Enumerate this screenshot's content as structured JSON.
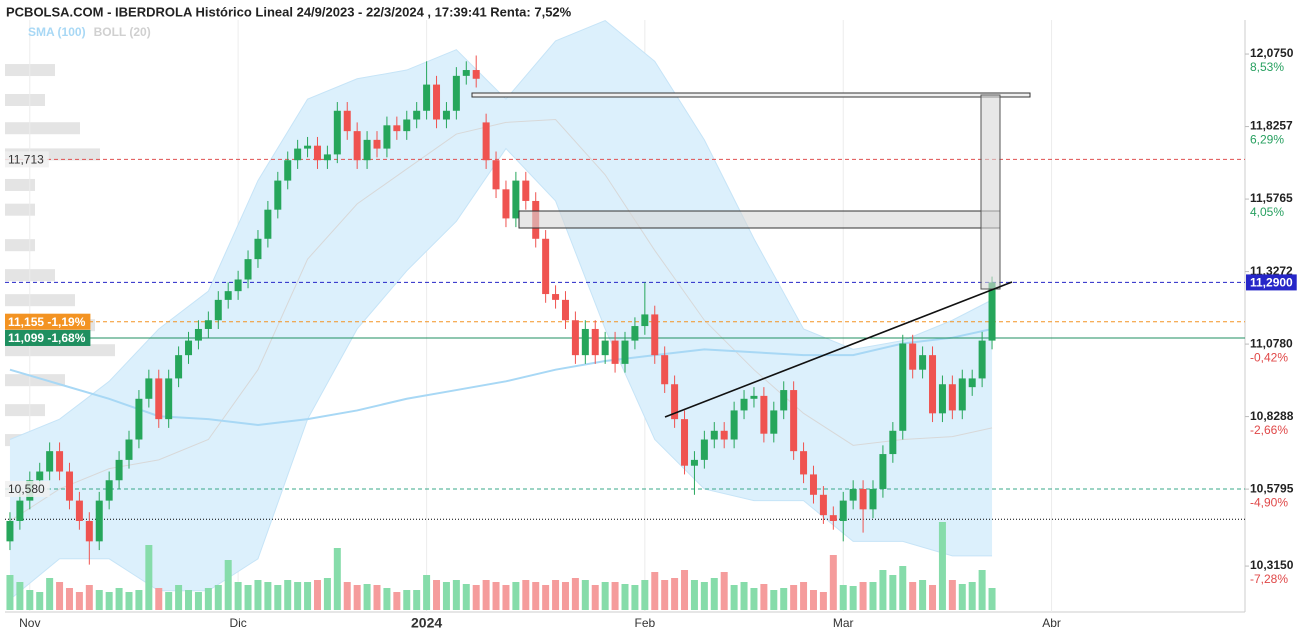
{
  "chart_data": {
    "type": "candlestick",
    "title": "PCBOLSA.COM - IBERDROLA Histórico Lineal 24/9/2023 - 22/3/2024 , 17:39:41 Renta: 7,52%",
    "legend": [
      {
        "label": "SMA (100)",
        "color": "#a8d8f5"
      },
      {
        "label": "BOLL (20)",
        "color": "#d0d0d0"
      }
    ],
    "xlim": [
      -0.5,
      124.5
    ],
    "xticks": [
      {
        "value": 2,
        "label": "Nov"
      },
      {
        "value": 23,
        "label": "Dic"
      },
      {
        "value": 42,
        "label": "2024"
      },
      {
        "value": 64,
        "label": "Feb"
      },
      {
        "value": 84,
        "label": "Mar"
      },
      {
        "value": 105,
        "label": "Abr"
      }
    ],
    "ylim": [
      10.164,
      12.192
    ],
    "yticks": [
      {
        "value": 12.075,
        "label": "12,0750",
        "pct": "8,53%"
      },
      {
        "value": 11.8257,
        "label": "11,8257",
        "pct": "6,29%"
      },
      {
        "value": 11.5765,
        "label": "11,5765",
        "pct": "4,05%"
      },
      {
        "value": 11.3272,
        "label": "11,3272"
      },
      {
        "value": 11.078,
        "label": "11,0780",
        "pct": "-0,42%"
      },
      {
        "value": 10.8288,
        "label": "10,8288",
        "pct": "-2,66%"
      },
      {
        "value": 10.5795,
        "label": "10,5795",
        "pct": "-4,90%"
      },
      {
        "value": 10.315,
        "label": "10,3150",
        "pct": "-7,28%"
      }
    ],
    "up_color": "#26a65b",
    "down_color": "#ef5350",
    "volume_up_color": "#86dcaa",
    "volume_down_color": "#f59c9c",
    "open": [
      10.4,
      10.47,
      10.54,
      10.61,
      10.64,
      10.71,
      10.64,
      10.54,
      10.47,
      10.4,
      10.54,
      10.61,
      10.68,
      10.75,
      10.89,
      10.96,
      10.82,
      10.96,
      11.04,
      11.09,
      11.13,
      11.16,
      11.23,
      11.26,
      11.3,
      11.37,
      11.44,
      11.54,
      11.64,
      11.71,
      11.75,
      11.76,
      11.71,
      11.73,
      11.88,
      11.81,
      11.71,
      11.78,
      11.75,
      11.83,
      11.81,
      11.85,
      11.88,
      11.97,
      11.85,
      11.88,
      12.0,
      12.02,
      11.84,
      11.71,
      11.61,
      11.51,
      11.64,
      11.57,
      11.44,
      11.25,
      11.23,
      11.16,
      11.04,
      11.13,
      11.04,
      11.09,
      11.01,
      11.09,
      11.14,
      11.18,
      11.04,
      10.94,
      10.82,
      10.66,
      10.68,
      10.75,
      10.78,
      10.75,
      10.85,
      10.89,
      10.9,
      10.77,
      10.85,
      10.92,
      10.71,
      10.63,
      10.56,
      10.49,
      10.47,
      10.54,
      10.58,
      10.51,
      10.58,
      10.7,
      10.78,
      11.08,
      10.99,
      11.04,
      10.84,
      10.94,
      10.85,
      10.93,
      10.96,
      11.09
    ],
    "high": [
      10.5,
      10.57,
      10.64,
      10.67,
      10.74,
      10.74,
      10.67,
      10.57,
      10.5,
      10.57,
      10.64,
      10.71,
      10.78,
      10.92,
      10.99,
      10.99,
      10.99,
      11.07,
      11.12,
      11.16,
      11.19,
      11.26,
      11.29,
      11.33,
      11.4,
      11.47,
      11.57,
      11.67,
      11.74,
      11.78,
      11.79,
      11.79,
      11.76,
      11.91,
      11.91,
      11.84,
      11.81,
      11.81,
      11.86,
      11.86,
      11.88,
      11.91,
      12.05,
      12.0,
      11.91,
      12.03,
      12.05,
      12.07,
      11.87,
      11.74,
      11.64,
      11.67,
      11.67,
      11.6,
      11.47,
      11.28,
      11.26,
      11.19,
      11.16,
      11.16,
      11.12,
      11.12,
      11.12,
      11.17,
      11.29,
      11.21,
      11.07,
      10.97,
      10.85,
      10.71,
      10.78,
      10.81,
      10.81,
      10.88,
      10.92,
      10.93,
      10.93,
      10.88,
      10.95,
      10.95,
      10.74,
      10.66,
      10.59,
      10.52,
      10.57,
      10.61,
      10.61,
      10.61,
      10.73,
      10.81,
      11.11,
      11.11,
      11.07,
      11.07,
      10.97,
      10.97,
      10.99,
      10.99,
      11.12,
      11.31
    ],
    "low": [
      10.37,
      10.44,
      10.51,
      10.58,
      10.61,
      10.61,
      10.51,
      10.44,
      10.32,
      10.37,
      10.51,
      10.58,
      10.65,
      10.72,
      10.86,
      10.79,
      10.79,
      10.93,
      11.01,
      11.06,
      11.1,
      11.13,
      11.2,
      11.23,
      11.27,
      11.34,
      11.41,
      11.51,
      11.61,
      11.68,
      11.72,
      11.68,
      11.68,
      11.7,
      11.78,
      11.68,
      11.68,
      11.72,
      11.72,
      11.78,
      11.78,
      11.82,
      11.85,
      11.82,
      11.82,
      11.85,
      11.97,
      11.96,
      11.68,
      11.58,
      11.48,
      11.48,
      11.54,
      11.41,
      11.22,
      11.2,
      11.13,
      11.01,
      11.01,
      11.01,
      11.01,
      10.98,
      10.98,
      11.06,
      11.11,
      11.01,
      10.91,
      10.79,
      10.63,
      10.56,
      10.65,
      10.72,
      10.72,
      10.72,
      10.82,
      10.86,
      10.74,
      10.74,
      10.82,
      10.68,
      10.6,
      10.53,
      10.46,
      10.44,
      10.4,
      10.51,
      10.43,
      10.48,
      10.55,
      10.67,
      10.75,
      10.96,
      10.96,
      10.81,
      10.81,
      10.82,
      10.82,
      10.9,
      10.93,
      11.06
    ],
    "close": [
      10.47,
      10.54,
      10.61,
      10.64,
      10.71,
      10.64,
      10.54,
      10.47,
      10.4,
      10.54,
      10.61,
      10.68,
      10.75,
      10.89,
      10.96,
      10.82,
      10.96,
      11.04,
      11.09,
      11.13,
      11.16,
      11.23,
      11.26,
      11.3,
      11.37,
      11.44,
      11.54,
      11.64,
      11.71,
      11.75,
      11.76,
      11.71,
      11.73,
      11.88,
      11.81,
      11.71,
      11.78,
      11.75,
      11.83,
      11.81,
      11.85,
      11.88,
      11.97,
      11.85,
      11.88,
      12.0,
      12.02,
      11.99,
      11.71,
      11.61,
      11.51,
      11.64,
      11.57,
      11.44,
      11.25,
      11.23,
      11.16,
      11.04,
      11.13,
      11.04,
      11.09,
      11.01,
      11.09,
      11.14,
      11.18,
      11.04,
      10.94,
      10.82,
      10.66,
      10.68,
      10.75,
      10.78,
      10.75,
      10.85,
      10.89,
      10.9,
      10.77,
      10.85,
      10.92,
      10.71,
      10.63,
      10.56,
      10.49,
      10.47,
      10.54,
      10.58,
      10.51,
      10.58,
      10.7,
      10.78,
      11.08,
      10.99,
      11.04,
      10.84,
      10.94,
      10.85,
      10.96,
      10.96,
      11.09,
      11.29
    ],
    "volume_lim": [
      0,
      100
    ],
    "volume": [
      35,
      28,
      20,
      18,
      32,
      28,
      22,
      18,
      25,
      20,
      18,
      22,
      18,
      20,
      65,
      22,
      18,
      25,
      20,
      18,
      22,
      25,
      50,
      28,
      25,
      30,
      28,
      25,
      30,
      28,
      28,
      30,
      32,
      62,
      28,
      25,
      26,
      25,
      22,
      18,
      20,
      20,
      35,
      30,
      28,
      30,
      26,
      25,
      30,
      28,
      25,
      28,
      30,
      28,
      25,
      30,
      28,
      32,
      30,
      25,
      28,
      28,
      26,
      25,
      30,
      38,
      30,
      32,
      40,
      30,
      28,
      32,
      38,
      25,
      28,
      22,
      26,
      20,
      22,
      25,
      28,
      20,
      18,
      55,
      25,
      24,
      28,
      28,
      40,
      35,
      44,
      28,
      30,
      25,
      88,
      30,
      26,
      28,
      40,
      22
    ],
    "bands": {
      "x": [
        0,
        5,
        10,
        15,
        20,
        25,
        30,
        35,
        40,
        45,
        50,
        55,
        60,
        65,
        70,
        75,
        80,
        85,
        90,
        95,
        99
      ],
      "upper": [
        10.75,
        10.82,
        10.95,
        11.13,
        11.26,
        11.64,
        11.92,
        11.99,
        12.02,
        12.09,
        11.92,
        12.12,
        12.19,
        12.05,
        11.78,
        11.44,
        11.13,
        11.06,
        11.09,
        11.16,
        11.23
      ],
      "middle": [
        10.47,
        10.58,
        10.65,
        10.68,
        10.75,
        10.99,
        11.37,
        11.56,
        11.68,
        11.8,
        11.84,
        11.85,
        11.66,
        11.4,
        11.16,
        10.99,
        10.84,
        10.73,
        10.75,
        10.76,
        10.79
      ],
      "lower": [
        10.2,
        10.34,
        10.34,
        10.23,
        10.23,
        10.34,
        10.82,
        11.13,
        11.33,
        11.5,
        11.75,
        11.57,
        11.13,
        10.75,
        10.58,
        10.54,
        10.54,
        10.4,
        10.4,
        10.35,
        10.35
      ],
      "sma100": [
        10.99,
        10.94,
        10.89,
        10.83,
        10.82,
        10.8,
        10.82,
        10.85,
        10.89,
        10.92,
        10.95,
        10.99,
        11.02,
        11.04,
        11.06,
        11.05,
        11.04,
        11.04,
        11.08,
        11.1,
        11.13
      ],
      "fill": "#dcf0fc",
      "middle_color": "#d8d8d8",
      "sma_color": "#a8d8f5"
    },
    "levels": [
      {
        "value": 11.713,
        "label": "11,713",
        "color": "#e05050",
        "style": "dashed",
        "side": "left",
        "box": false
      },
      {
        "value": 11.29,
        "label": "11,2900",
        "color": "#2626c8",
        "style": "dashed",
        "side": "right",
        "box": true
      },
      {
        "value": 11.155,
        "label": "11,155 -1,19%",
        "color": "#f39322",
        "style": "dashed",
        "side": "left",
        "box": true
      },
      {
        "value": 11.099,
        "label": "11,099 -1,68%",
        "color": "#1f8f60",
        "style": "solid",
        "side": "left",
        "box": true
      },
      {
        "value": 10.58,
        "label": "10,580",
        "color": "#3aa88a",
        "style": "dashed",
        "side": "left",
        "box": false
      },
      {
        "value": 10.476,
        "color": "#000000",
        "style": "dotted"
      }
    ],
    "volume_profile": {
      "prices": [
        12.02,
        11.917,
        11.82,
        11.73,
        11.625,
        11.54,
        11.418,
        11.315,
        11.229,
        11.143,
        11.057,
        10.954,
        10.851,
        10.748
      ],
      "values": [
        50,
        40,
        75,
        95,
        30,
        30,
        30,
        50,
        70,
        90,
        110,
        60,
        40,
        30
      ]
    }
  }
}
